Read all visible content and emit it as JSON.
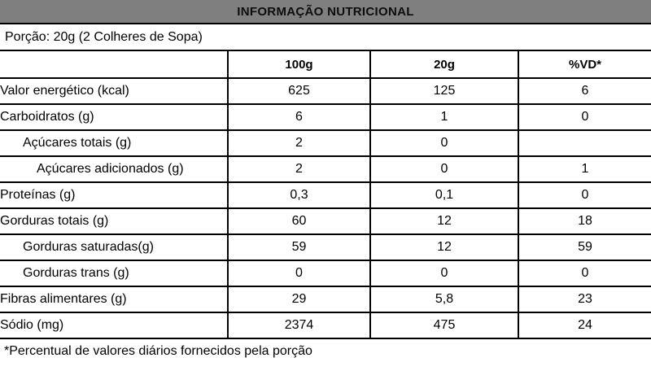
{
  "header": {
    "title": "INFORMAÇÃO NUTRICIONAL"
  },
  "portion": {
    "text": "Porção: 20g (2 Colheres de Sopa)"
  },
  "table": {
    "columns": [
      "",
      "100g",
      "20g",
      "%VD*"
    ],
    "rows": [
      {
        "label": "Valor energético (kcal)",
        "indent": 0,
        "v100": "625",
        "v20": "125",
        "vd": "6"
      },
      {
        "label": "Carboidratos (g)",
        "indent": 0,
        "v100": "6",
        "v20": "1",
        "vd": "0"
      },
      {
        "label": "Açúcares totais (g)",
        "indent": 1,
        "v100": "2",
        "v20": "0",
        "vd": ""
      },
      {
        "label": "Açúcares adicionados (g)",
        "indent": 2,
        "v100": "2",
        "v20": "0",
        "vd": "1"
      },
      {
        "label": "Proteínas (g)",
        "indent": 0,
        "v100": "0,3",
        "v20": "0,1",
        "vd": "0"
      },
      {
        "label": "Gorduras totais (g)",
        "indent": 0,
        "v100": "60",
        "v20": "12",
        "vd": "18"
      },
      {
        "label": "Gorduras saturadas(g)",
        "indent": 1,
        "v100": "59",
        "v20": "12",
        "vd": "59"
      },
      {
        "label": "Gorduras trans (g)",
        "indent": 1,
        "v100": "0",
        "v20": "0",
        "vd": "0"
      },
      {
        "label": "Fibras alimentares (g)",
        "indent": 0,
        "v100": "29",
        "v20": "5,8",
        "vd": "23"
      },
      {
        "label": "Sódio (mg)",
        "indent": 0,
        "v100": "2374",
        "v20": "475",
        "vd": "24"
      }
    ]
  },
  "footnote": {
    "text": "*Percentual de valores diários fornecidos pela porção"
  },
  "colors": {
    "title_bar_bg": "#7f7f7f",
    "border": "#000000",
    "text": "#000000",
    "background": "#ffffff"
  }
}
